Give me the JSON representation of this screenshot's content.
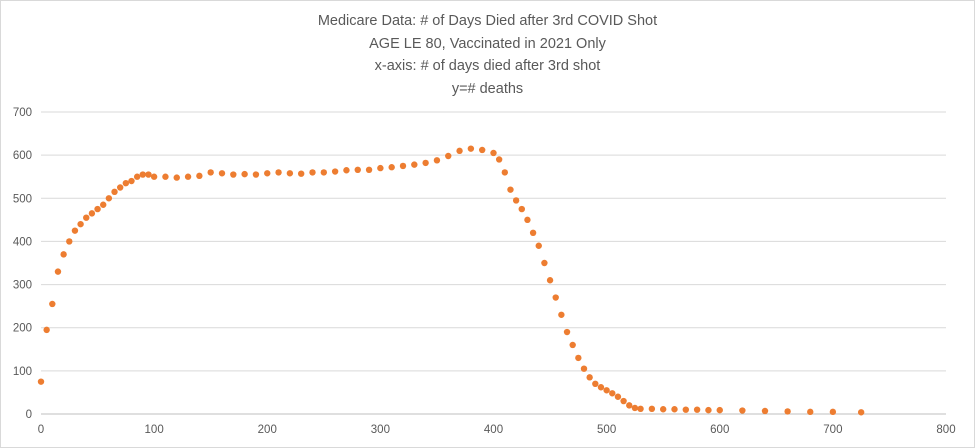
{
  "chart_data": {
    "type": "scatter",
    "title": "Medicare Data: # of Days Died after 3rd COVID Shot",
    "subtitle_lines": [
      "AGE LE 80, Vaccinated in 2021 Only",
      "x-axis: # of days died after 3rd shot",
      "y=# deaths"
    ],
    "xlabel": "",
    "ylabel": "",
    "xlim": [
      0,
      800
    ],
    "ylim": [
      0,
      700
    ],
    "x_ticks": [
      "0",
      "100",
      "200",
      "300",
      "400",
      "500",
      "600",
      "700",
      "800"
    ],
    "y_ticks": [
      "0",
      "100",
      "200",
      "300",
      "400",
      "500",
      "600",
      "700"
    ],
    "grid": "horizontal",
    "legend": "none",
    "marker_color": "#ED7D31",
    "points_description": "one point per day, 0-725",
    "x": [
      0,
      5,
      10,
      15,
      20,
      25,
      30,
      35,
      40,
      45,
      50,
      55,
      60,
      65,
      70,
      75,
      80,
      85,
      90,
      95,
      100,
      110,
      120,
      130,
      140,
      150,
      160,
      170,
      180,
      190,
      200,
      210,
      220,
      230,
      240,
      250,
      260,
      270,
      280,
      290,
      300,
      310,
      320,
      330,
      340,
      350,
      360,
      370,
      380,
      390,
      400,
      405,
      410,
      415,
      420,
      425,
      430,
      435,
      440,
      445,
      450,
      455,
      460,
      465,
      470,
      475,
      480,
      485,
      490,
      495,
      500,
      505,
      510,
      515,
      520,
      525,
      530,
      540,
      550,
      560,
      570,
      580,
      590,
      600,
      620,
      640,
      660,
      680,
      700,
      725
    ],
    "y": [
      75,
      195,
      255,
      330,
      370,
      400,
      425,
      440,
      455,
      465,
      475,
      485,
      500,
      515,
      525,
      535,
      540,
      550,
      555,
      555,
      550,
      550,
      548,
      550,
      552,
      560,
      558,
      555,
      556,
      555,
      558,
      560,
      558,
      557,
      560,
      560,
      562,
      565,
      566,
      566,
      570,
      572,
      575,
      578,
      582,
      588,
      598,
      610,
      615,
      612,
      605,
      590,
      560,
      520,
      495,
      475,
      450,
      420,
      390,
      350,
      310,
      270,
      230,
      190,
      160,
      130,
      105,
      85,
      70,
      62,
      55,
      48,
      40,
      30,
      20,
      14,
      12,
      12,
      11,
      11,
      10,
      10,
      9,
      9,
      8,
      7,
      6,
      5,
      5,
      4
    ]
  }
}
